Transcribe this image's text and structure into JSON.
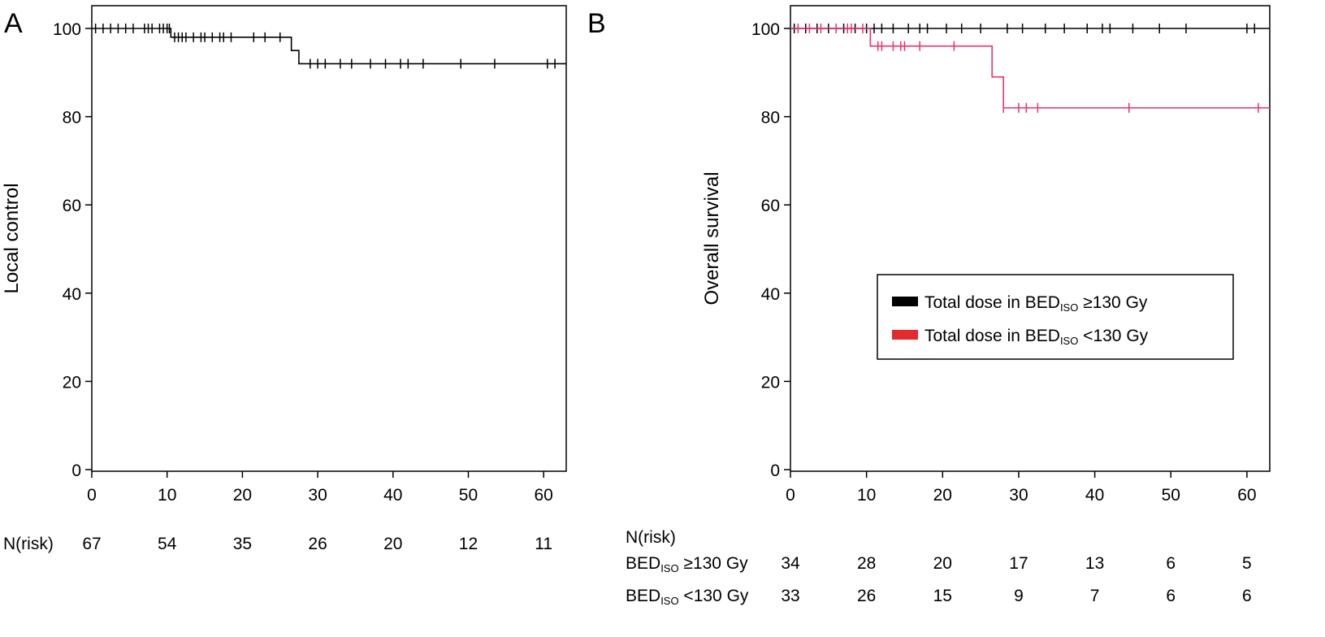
{
  "chart_data": [
    {
      "panel_label": "A",
      "type": "line",
      "ylabel": "Local control",
      "xlim": [
        0,
        63
      ],
      "ylim": [
        0,
        100
      ],
      "x_ticks": [
        0,
        10,
        20,
        30,
        40,
        50,
        60
      ],
      "y_ticks": [
        0,
        20,
        40,
        60,
        80,
        100
      ],
      "series": [
        {
          "color": "#000000",
          "steps": [
            [
              0,
              100
            ],
            [
              10.5,
              98
            ],
            [
              26.5,
              95
            ],
            [
              27.5,
              92
            ],
            [
              63,
              92
            ]
          ],
          "censors": [
            0.5,
            1.5,
            2.5,
            3.5,
            4.5,
            5.5,
            7,
            7.5,
            8,
            9,
            9.5,
            10,
            10.3,
            11,
            11.5,
            12,
            12.5,
            13.5,
            14.5,
            15,
            16,
            17,
            17.5,
            18.5,
            21.5,
            23,
            25,
            29,
            30,
            31,
            33,
            34.5,
            37,
            39,
            41,
            42,
            44,
            49,
            53.5,
            60.5,
            61.5
          ]
        }
      ],
      "risk_table": {
        "label": "N(risk)",
        "rows": [
          {
            "label": "",
            "values": [
              67,
              54,
              35,
              26,
              20,
              12,
              11
            ]
          }
        ]
      }
    },
    {
      "panel_label": "B",
      "type": "line",
      "ylabel": "Overall survival",
      "xlim": [
        0,
        63
      ],
      "ylim": [
        0,
        100
      ],
      "x_ticks": [
        0,
        10,
        20,
        30,
        40,
        50,
        60
      ],
      "y_ticks": [
        0,
        20,
        40,
        60,
        80,
        100
      ],
      "legend_position": "center-right",
      "series": [
        {
          "name_main": "Total dose in BED",
          "name_sub": "ISO",
          "name_tail": " ≥130 Gy",
          "color": "#000000",
          "steps": [
            [
              0,
              100
            ],
            [
              63,
              100
            ]
          ],
          "censors": [
            0.5,
            2,
            3.5,
            5,
            7,
            8.5,
            10,
            11,
            12,
            13.5,
            15.5,
            17,
            18,
            20.5,
            22.5,
            25,
            28.5,
            30.5,
            33.5,
            36,
            39,
            41,
            42,
            45,
            48.5,
            52,
            60,
            61
          ]
        },
        {
          "name_main": "Total dose in BED",
          "name_sub": "ISO",
          "name_tail": " <130 Gy",
          "color": "#e8336b",
          "steps": [
            [
              0,
              100
            ],
            [
              10.5,
              96
            ],
            [
              26.5,
              89
            ],
            [
              28,
              82
            ],
            [
              63,
              82
            ]
          ],
          "censors": [
            1,
            2.5,
            4,
            6,
            7.5,
            8,
            9.5,
            11.5,
            12,
            13.5,
            14.5,
            15,
            17,
            21.5,
            28,
            30,
            31,
            32.5,
            44.5,
            61.5
          ]
        }
      ],
      "risk_table": {
        "label": "N(risk)",
        "rows": [
          {
            "label_main": "BED",
            "label_sub": "ISO",
            "label_tail": " ≥130 Gy",
            "values": [
              34,
              28,
              20,
              17,
              13,
              6,
              5
            ]
          },
          {
            "label_main": "BED",
            "label_sub": "ISO",
            "label_tail": " <130 Gy",
            "values": [
              33,
              26,
              15,
              9,
              7,
              6,
              6
            ]
          }
        ]
      }
    }
  ]
}
